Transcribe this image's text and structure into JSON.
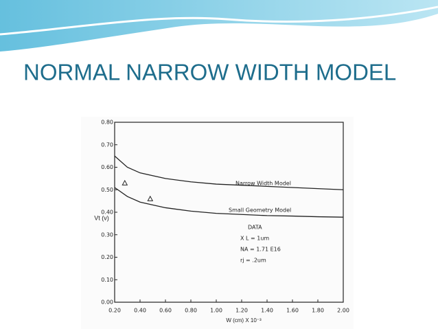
{
  "chart_data": {
    "type": "line",
    "title": "NORMAL NARROW WIDTH MODEL",
    "x_label": "W (cm) X 10⁻³",
    "y_label": "Vt (v)",
    "xlim": [
      0.2,
      2.0
    ],
    "ylim": [
      0.0,
      0.8
    ],
    "xticks": [
      {
        "value": 0.2,
        "label": "0.20"
      },
      {
        "value": 0.4,
        "label": "0.40"
      },
      {
        "value": 0.6,
        "label": "0.60"
      },
      {
        "value": 0.8,
        "label": "0.80"
      },
      {
        "value": 1.0,
        "label": "1.00"
      },
      {
        "value": 1.2,
        "label": "1.20"
      },
      {
        "value": 1.4,
        "label": "1.40"
      },
      {
        "value": 1.6,
        "label": "1.60"
      },
      {
        "value": 1.8,
        "label": "1.80"
      },
      {
        "value": 2.0,
        "label": "2.00"
      }
    ],
    "yticks": [
      {
        "value": 0.0,
        "label": "0.00"
      },
      {
        "value": 0.1,
        "label": "0.10"
      },
      {
        "value": 0.2,
        "label": "0.20"
      },
      {
        "value": 0.3,
        "label": "0.30"
      },
      {
        "value": 0.4,
        "label": "0.40"
      },
      {
        "value": 0.5,
        "label": "0.50"
      },
      {
        "value": 0.6,
        "label": "0.60"
      },
      {
        "value": 0.7,
        "label": "0.70"
      },
      {
        "value": 0.8,
        "label": "0.80"
      }
    ],
    "series": [
      {
        "name": "Narrow Width Model",
        "color": "#222222",
        "marker": "none",
        "x": [
          0.2,
          0.3,
          0.4,
          0.6,
          0.8,
          1.0,
          1.2,
          1.4,
          1.6,
          1.8,
          2.0
        ],
        "values": [
          0.65,
          0.6,
          0.575,
          0.55,
          0.535,
          0.525,
          0.52,
          0.515,
          0.51,
          0.505,
          0.5
        ]
      },
      {
        "name": "Small Geometry Model",
        "color": "#222222",
        "marker": "none",
        "x": [
          0.2,
          0.3,
          0.4,
          0.6,
          0.8,
          1.0,
          1.2,
          1.4,
          1.6,
          1.8,
          2.0
        ],
        "values": [
          0.51,
          0.47,
          0.445,
          0.42,
          0.405,
          0.395,
          0.39,
          0.385,
          0.383,
          0.38,
          0.378
        ]
      },
      {
        "name": "DATA",
        "color": "#222222",
        "marker": "triangle",
        "x": [
          0.28,
          0.48
        ],
        "values": [
          0.53,
          0.46
        ]
      }
    ],
    "annotations": [
      "X L = 1um",
      "NA = 1.71 E16",
      "rj = .2um"
    ]
  }
}
